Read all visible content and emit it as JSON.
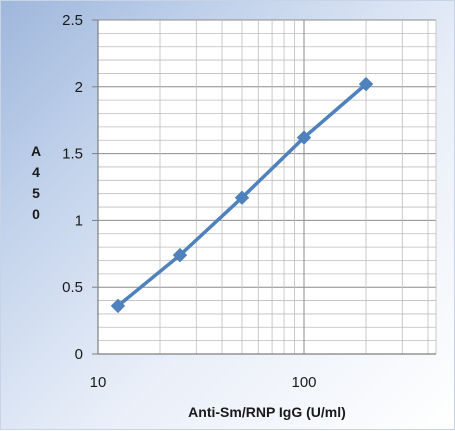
{
  "chart_data": {
    "type": "line",
    "title": "",
    "xlabel": "Anti-Sm/RNP IgG (U/ml)",
    "ylabel": "A450",
    "x_scale": "log",
    "xlim": [
      10,
      250
    ],
    "ylim": [
      0,
      2.5
    ],
    "x_ticks": [
      "10",
      "100"
    ],
    "y_ticks": [
      "0",
      "0.5",
      "1",
      "1.5",
      "2",
      "2.5"
    ],
    "grid": true,
    "legend": "none",
    "series": [
      {
        "x": [
          12.5,
          25,
          50,
          100,
          200
        ],
        "y": [
          0.36,
          0.74,
          1.17,
          1.62,
          2.02
        ],
        "color": "#4f81bd",
        "marker": "diamond"
      }
    ]
  }
}
